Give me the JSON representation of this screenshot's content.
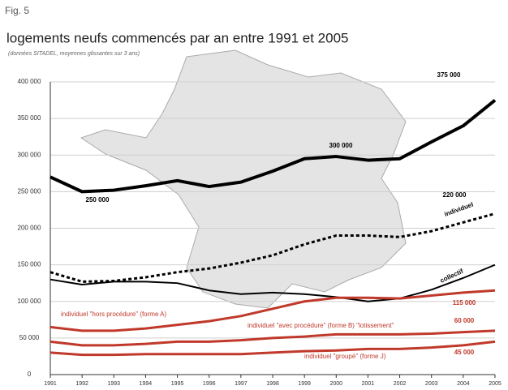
{
  "figure_label": "Fig. 5",
  "chart_data": {
    "type": "line",
    "title": "logements neufs commencés par an entre 1991 et 2005",
    "subtitle": "(données SITADEL, moyennes glissantes sur 3 ans)",
    "x": [
      1991,
      1992,
      1993,
      1994,
      1995,
      1996,
      1997,
      1998,
      1999,
      2000,
      2001,
      2002,
      2003,
      2004,
      2005
    ],
    "xlim": [
      1991,
      2005
    ],
    "xticks": [
      1991,
      1992,
      1993,
      1994,
      1995,
      1996,
      1997,
      1998,
      1999,
      2000,
      2001,
      2002,
      2003,
      2004,
      2005
    ],
    "ylim": [
      0,
      400000
    ],
    "yticks": [
      0,
      {
        "value": 50000,
        "label": "50 000"
      },
      {
        "value": 100000,
        "label": "100 000"
      },
      {
        "value": 150000,
        "label": "150 000"
      },
      {
        "value": 200000,
        "label": "200 000"
      },
      {
        "value": 250000,
        "label": "250 000"
      },
      {
        "value": 300000,
        "label": "300 000"
      },
      {
        "value": 350000,
        "label": "350 000"
      },
      {
        "value": 400000,
        "label": "400 000"
      }
    ],
    "grid": true,
    "series": [
      {
        "color": "#000000",
        "style": "solid",
        "values": [
          270000,
          250000,
          252000,
          258000,
          265000,
          257000,
          263000,
          278000,
          295000,
          298000,
          293000,
          295000,
          318000,
          340000,
          375000
        ]
      },
      {
        "name": "individuel",
        "color": "#000000",
        "style": "dotted",
        "values": [
          140000,
          127000,
          128000,
          133000,
          140000,
          145000,
          153000,
          163000,
          178000,
          190000,
          190000,
          188000,
          196000,
          208000,
          220000
        ]
      },
      {
        "name": "collectif",
        "color": "#000000",
        "style": "solid",
        "values": [
          130000,
          123000,
          127000,
          127000,
          125000,
          115000,
          110000,
          112000,
          110000,
          106000,
          100000,
          104000,
          116000,
          132000,
          150000
        ]
      },
      {
        "name": "individuel \"hors procédure\" (forme A)",
        "color": "#c0392b",
        "style": "solid",
        "values": [
          65000,
          60000,
          60000,
          63000,
          68000,
          73000,
          80000,
          90000,
          100000,
          105000,
          105000,
          104000,
          108000,
          112000,
          115000
        ]
      },
      {
        "name": "individuel \"avec procédure\" (forme B) \"lotissement\"",
        "color": "#c0392b",
        "style": "solid",
        "values": [
          45000,
          40000,
          40000,
          42000,
          45000,
          45000,
          47000,
          50000,
          52000,
          55000,
          55000,
          55000,
          56000,
          58000,
          60000
        ]
      },
      {
        "name": "individuel \"groupé\" (forme J)",
        "color": "#c0392b",
        "style": "solid",
        "values": [
          30000,
          27000,
          27000,
          28000,
          28000,
          28000,
          28000,
          30000,
          32000,
          33000,
          35000,
          35000,
          37000,
          40000,
          45000
        ]
      }
    ],
    "annotations": [
      "375 000",
      "300 000",
      "250 000",
      "220 000",
      "115 000",
      "60 000",
      "45 000"
    ]
  }
}
